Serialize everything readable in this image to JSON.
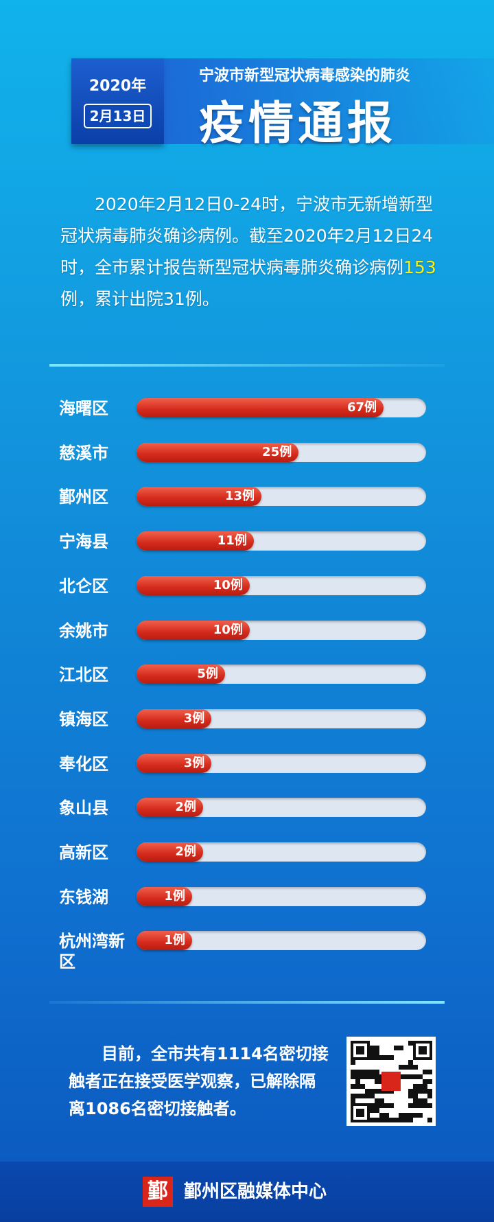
{
  "header": {
    "year": "2020年",
    "date": "2月13日",
    "subtitle": "宁波市新型冠状病毒感染的肺炎",
    "title": "疫情通报"
  },
  "intro": {
    "parts": [
      "2020年2月12日0-24时，宁波市无新增新型冠状病毒肺炎确诊病例。截至2020年2月12日24时，全市累计报告新型冠状病毒肺炎确诊病例",
      "153",
      "例，累计出院31例。"
    ]
  },
  "chart_data": {
    "type": "bar",
    "orientation": "horizontal",
    "color": "#e0392a",
    "track_color": "#dde6f1",
    "categories": [
      "海曙区",
      "慈溪市",
      "鄞州区",
      "宁海县",
      "北仑区",
      "余姚市",
      "江北区",
      "镇海区",
      "奉化区",
      "象山县",
      "高新区",
      "东钱湖",
      "杭州湾新区"
    ],
    "values": [
      67,
      25,
      13,
      11,
      10,
      10,
      5,
      3,
      3,
      2,
      2,
      1,
      1
    ],
    "value_labels": [
      "67例",
      "25例",
      "13例",
      "11例",
      "10例",
      "10例",
      "5例",
      "3例",
      "3例",
      "2例",
      "2例",
      "1例",
      "1例"
    ]
  },
  "footer": {
    "text": "目前，全市共有1114名密切接触者正在接受医学观察，已解除隔离1086名密切接触者。",
    "logo": "鄞",
    "org": "鄞州区融媒体中心"
  }
}
